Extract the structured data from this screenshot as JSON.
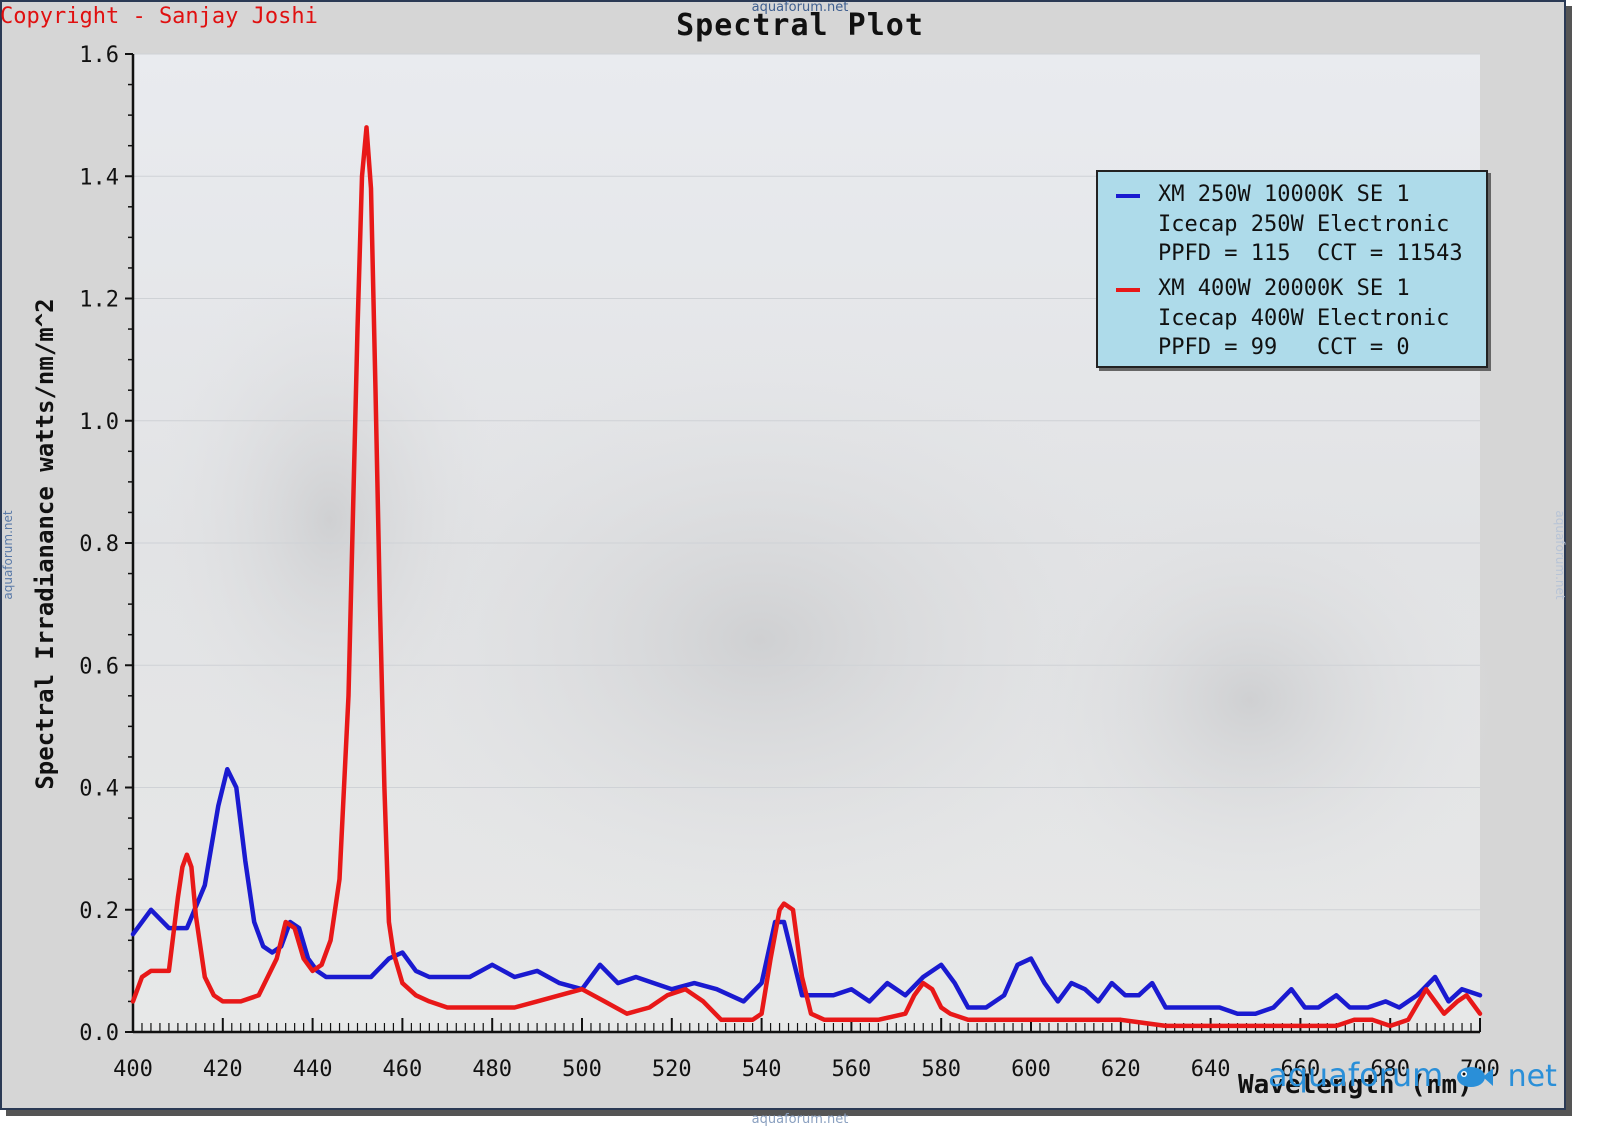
{
  "copyright": "Copyright - Sanjay Joshi",
  "watermarks": {
    "top": "aquaforum.net",
    "bottom": "aquaforum.net",
    "left": "aquaforum.net",
    "right": "aquaforum.net"
  },
  "logo": {
    "main": "aquaforum",
    "tld": "net",
    "icon": "fish-icon"
  },
  "colors": {
    "series1": "#1a1ad0",
    "series2": "#e81818",
    "legend_bg": "#aedbea",
    "copyright": "#e01010"
  },
  "legend": {
    "entries": [
      {
        "line1": "XM 250W 10000K SE 1",
        "line2": "Icecap 250W Electronic",
        "line3": "PPFD = 115  CCT = 11543"
      },
      {
        "line1": "XM 400W 20000K SE 1",
        "line2": "Icecap 400W Electronic",
        "line3": "PPFD = 99   CCT = 0"
      }
    ]
  },
  "chart_data": {
    "type": "line",
    "title": "Spectral Plot",
    "xlabel": "Wavelength (nm)",
    "ylabel": "Spectral Irradianance watts/nm/m^2",
    "xlim": [
      400,
      700
    ],
    "ylim": [
      0.0,
      1.6
    ],
    "xticks": [
      "400",
      "420",
      "440",
      "460",
      "480",
      "500",
      "520",
      "540",
      "560",
      "580",
      "600",
      "620",
      "640",
      "660",
      "680",
      "700"
    ],
    "yticks": [
      "0.0",
      "0.2",
      "0.4",
      "0.6",
      "0.8",
      "1.0",
      "1.2",
      "1.4",
      "1.6"
    ],
    "grid": true,
    "legend_position": "top-right",
    "series": [
      {
        "name": "XM 250W 10000K SE 1",
        "color": "#1a1ad0",
        "x": [
          400,
          404,
          408,
          412,
          416,
          419,
          421,
          423,
          425,
          427,
          429,
          431,
          433,
          435,
          437,
          439,
          441,
          443,
          446,
          450,
          453,
          457,
          460,
          463,
          466,
          470,
          475,
          480,
          485,
          490,
          495,
          500,
          504,
          508,
          512,
          516,
          520,
          525,
          530,
          536,
          540,
          543,
          545,
          547,
          549,
          552,
          556,
          560,
          564,
          568,
          572,
          576,
          580,
          583,
          586,
          590,
          594,
          597,
          600,
          603,
          606,
          609,
          612,
          615,
          618,
          621,
          624,
          627,
          630,
          634,
          638,
          642,
          646,
          650,
          654,
          658,
          661,
          664,
          668,
          671,
          675,
          679,
          682,
          686,
          690,
          693,
          696,
          700
        ],
        "y": [
          0.16,
          0.2,
          0.17,
          0.17,
          0.24,
          0.37,
          0.43,
          0.4,
          0.28,
          0.18,
          0.14,
          0.13,
          0.14,
          0.18,
          0.17,
          0.12,
          0.1,
          0.09,
          0.09,
          0.09,
          0.09,
          0.12,
          0.13,
          0.1,
          0.09,
          0.09,
          0.09,
          0.11,
          0.09,
          0.1,
          0.08,
          0.07,
          0.11,
          0.08,
          0.09,
          0.08,
          0.07,
          0.08,
          0.07,
          0.05,
          0.08,
          0.18,
          0.18,
          0.12,
          0.06,
          0.06,
          0.06,
          0.07,
          0.05,
          0.08,
          0.06,
          0.09,
          0.11,
          0.08,
          0.04,
          0.04,
          0.06,
          0.11,
          0.12,
          0.08,
          0.05,
          0.08,
          0.07,
          0.05,
          0.08,
          0.06,
          0.06,
          0.08,
          0.04,
          0.04,
          0.04,
          0.04,
          0.03,
          0.03,
          0.04,
          0.07,
          0.04,
          0.04,
          0.06,
          0.04,
          0.04,
          0.05,
          0.04,
          0.06,
          0.09,
          0.05,
          0.07,
          0.06
        ]
      },
      {
        "name": "XM 400W 20000K SE 1",
        "color": "#e81818",
        "x": [
          400,
          402,
          404,
          406,
          408,
          410,
          411,
          412,
          413,
          414,
          416,
          418,
          420,
          424,
          428,
          432,
          434,
          436,
          438,
          440,
          442,
          444,
          446,
          448,
          449,
          450,
          451,
          452,
          453,
          454,
          455,
          456,
          457,
          458,
          460,
          463,
          466,
          470,
          475,
          480,
          485,
          490,
          495,
          500,
          505,
          510,
          515,
          519,
          523,
          527,
          531,
          535,
          538,
          540,
          542,
          544,
          545,
          547,
          549,
          551,
          554,
          560,
          566,
          572,
          574,
          576,
          578,
          580,
          582,
          586,
          592,
          600,
          610,
          620,
          630,
          640,
          650,
          660,
          668,
          672,
          676,
          680,
          684,
          688,
          692,
          695,
          697,
          700
        ],
        "y": [
          0.05,
          0.09,
          0.1,
          0.1,
          0.1,
          0.22,
          0.27,
          0.29,
          0.27,
          0.19,
          0.09,
          0.06,
          0.05,
          0.05,
          0.06,
          0.12,
          0.18,
          0.17,
          0.12,
          0.1,
          0.11,
          0.15,
          0.25,
          0.55,
          0.85,
          1.15,
          1.4,
          1.48,
          1.38,
          1.05,
          0.7,
          0.4,
          0.18,
          0.13,
          0.08,
          0.06,
          0.05,
          0.04,
          0.04,
          0.04,
          0.04,
          0.05,
          0.06,
          0.07,
          0.05,
          0.03,
          0.04,
          0.06,
          0.07,
          0.05,
          0.02,
          0.02,
          0.02,
          0.03,
          0.12,
          0.2,
          0.21,
          0.2,
          0.09,
          0.03,
          0.02,
          0.02,
          0.02,
          0.03,
          0.06,
          0.08,
          0.07,
          0.04,
          0.03,
          0.02,
          0.02,
          0.02,
          0.02,
          0.02,
          0.01,
          0.01,
          0.01,
          0.01,
          0.01,
          0.02,
          0.02,
          0.01,
          0.02,
          0.07,
          0.03,
          0.05,
          0.06,
          0.03
        ]
      }
    ]
  }
}
